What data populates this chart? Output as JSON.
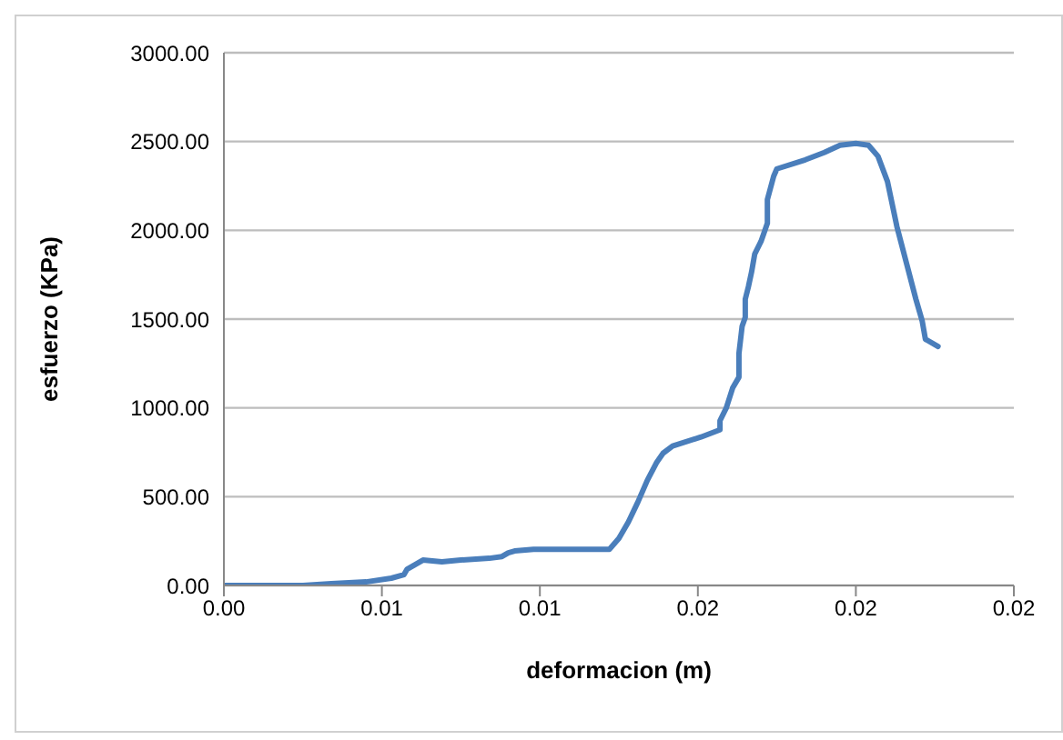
{
  "chart_data": {
    "type": "line",
    "xlabel": "deformacion (m)",
    "ylabel": "esfuerzo (KPa)",
    "x": [
      0,
      0.0016,
      0.0025,
      0.0034,
      0.0045,
      0.0053,
      0.0057,
      0.0058,
      0.006,
      0.0063,
      0.0069,
      0.0075,
      0.0084,
      0.0088,
      0.009,
      0.0092,
      0.0098,
      0.0116,
      0.0122,
      0.0123,
      0.0125,
      0.0128,
      0.0131,
      0.0134,
      0.0137,
      0.0139,
      0.0142,
      0.0151,
      0.0157,
      0.0157,
      0.0159,
      0.0161,
      0.0163,
      0.0163,
      0.0164,
      0.0165,
      0.0165,
      0.0166,
      0.0167,
      0.0168,
      0.017,
      0.0172,
      0.0172,
      0.0174,
      0.0175,
      0.0184,
      0.019,
      0.0195,
      0.02,
      0.0204,
      0.0207,
      0.021,
      0.0213,
      0.0216,
      0.0219,
      0.0221,
      0.0222,
      0.0226
    ],
    "series": [
      {
        "color": "#4a7ebb",
        "values": [
          0,
          0,
          0,
          10,
          20,
          41,
          61,
          92,
          112,
          143,
          133,
          143,
          153,
          163,
          184,
          194,
          204,
          204,
          204,
          224,
          265,
          357,
          469,
          592,
          694,
          745,
          785,
          836,
          877,
          928,
          1000,
          1112,
          1173,
          1306,
          1459,
          1510,
          1612,
          1683,
          1765,
          1867,
          1938,
          2040,
          2173,
          2305,
          2346,
          2397,
          2438,
          2479,
          2489,
          2479,
          2417,
          2275,
          2020,
          1816,
          1612,
          1489,
          1387,
          1346
        ]
      }
    ],
    "xlim": [
      0,
      0.025
    ],
    "xticks": [
      {
        "value": 0,
        "label": "0.00"
      },
      {
        "value": 0.005,
        "label": "0.01"
      },
      {
        "value": 0.01,
        "label": "0.01"
      },
      {
        "value": 0.015,
        "label": "0.02"
      },
      {
        "value": 0.02,
        "label": "0.02"
      },
      {
        "value": 0.025,
        "label": "0.02"
      }
    ],
    "ylim": [
      0,
      3000
    ],
    "yticks": [
      {
        "value": 0,
        "label": "0.00"
      },
      {
        "value": 500,
        "label": "500.00"
      },
      {
        "value": 1000,
        "label": "1000.00"
      },
      {
        "value": 1500,
        "label": "1500.00"
      },
      {
        "value": 2000,
        "label": "2000.00"
      },
      {
        "value": 2500,
        "label": "2500.00"
      },
      {
        "value": 3000,
        "label": "3000.00"
      }
    ],
    "grid": "y",
    "legend": false,
    "marker": "none",
    "line_style": "solid"
  }
}
